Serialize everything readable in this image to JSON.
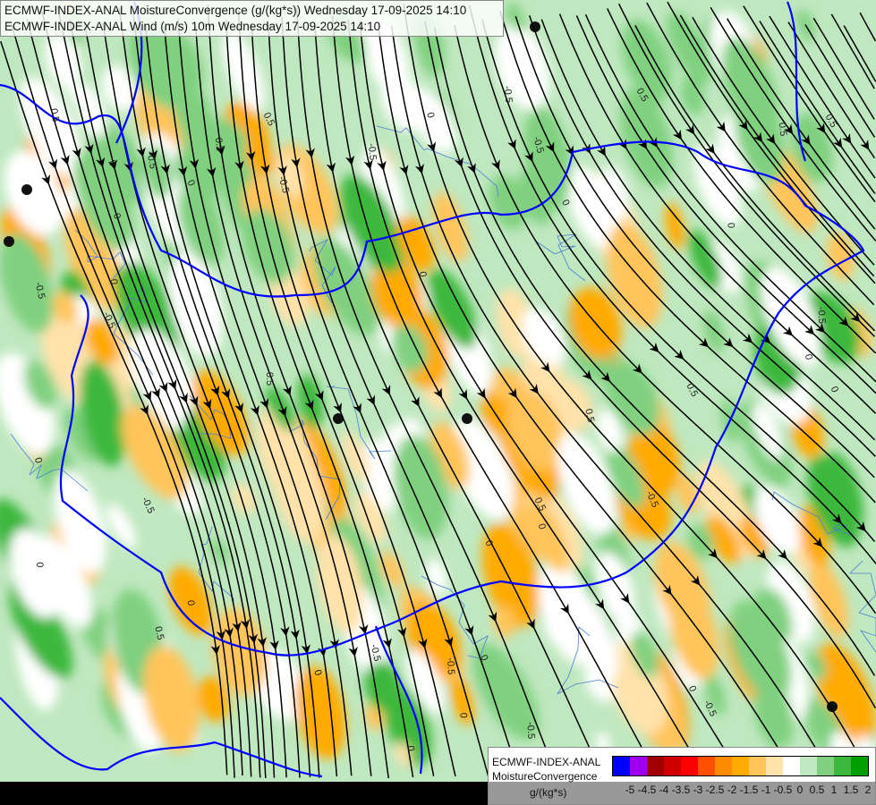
{
  "title": {
    "line1": "ECMWF-INDEX-ANAL MoistureConvergence (g/(kg*s)) Wednesday 17-09-2025 14:10",
    "line2": "ECMWF-INDEX-ANAL Wind (m/s) 10m Wednesday 17-09-2025 14:10"
  },
  "map": {
    "layers": [
      "moisture-convergence-fill",
      "wind-streamlines",
      "country-borders",
      "rivers"
    ],
    "contour_labels": [
      "0",
      "0.5",
      "-0.5"
    ],
    "colors": {
      "border": "#0000ff",
      "river": "#4a7fd0",
      "streamline": "#000000",
      "background": "#c0e8c0"
    }
  },
  "legend": {
    "model": "ECMWF-INDEX-ANAL",
    "parameter": "MoistureConvergence",
    "unit": "g/(kg*s)",
    "colors": [
      "#0000ff",
      "#a000f0",
      "#a00000",
      "#d00000",
      "#ff0000",
      "#ff5000",
      "#ff8c00",
      "#ffaa00",
      "#ffc45a",
      "#ffe2aa",
      "#ffffff",
      "#c0e8c0",
      "#80d080",
      "#3cb83c",
      "#00a000"
    ],
    "ticks": [
      "-5",
      "-4.5",
      "-4",
      "-3.5",
      "-3",
      "-2.5",
      "-2",
      "-1.5",
      "-1",
      "-0.5",
      "0",
      "0.5",
      "1",
      "1.5",
      "2"
    ]
  }
}
